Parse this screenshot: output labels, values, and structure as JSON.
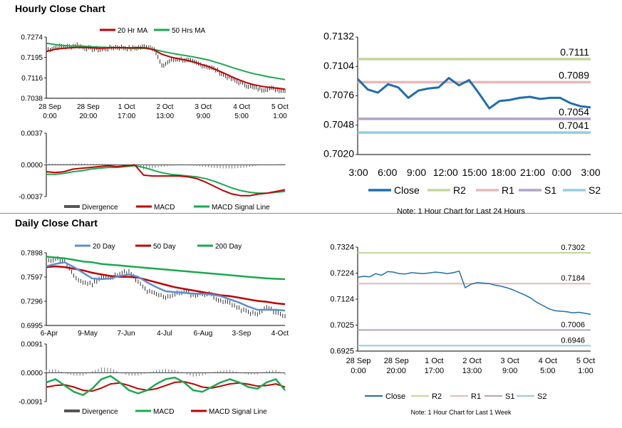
{
  "sections": {
    "hourly_title": "Hourly Close Chart",
    "daily_title": "Daily Close Chart"
  },
  "colors": {
    "close": "#1f6fb0",
    "ma_short": "#c00000",
    "ma_long": "#1aaa50",
    "ma_200": "#1aaa50",
    "ma_20_day": "#5b8fd0",
    "divergence": "#777777",
    "r2": "#c3d69b",
    "r1": "#e6b9b8",
    "s1": "#b3a2c7",
    "s2": "#93cddd"
  },
  "chart_data": [
    {
      "id": "hourly-price",
      "type": "line",
      "ylim": [
        0.7038,
        0.7274
      ],
      "y_ticks": [
        "0.7274",
        "0.7195",
        "0.7116",
        "0.7038"
      ],
      "x_ticks": [
        [
          "28 Sep",
          "0:00"
        ],
        [
          "28 Sep",
          "20:00"
        ],
        [
          "1 Oct",
          "17:00"
        ],
        [
          "2 Oct",
          "13:00"
        ],
        [
          "3 Oct",
          "9:00"
        ],
        [
          "4 Oct",
          "5:00"
        ],
        [
          "5 Oct",
          "1:00"
        ]
      ],
      "legend": [
        "20 Hr MA",
        "50 Hrs MA"
      ],
      "close": [
        0.7224,
        0.7232,
        0.7238,
        0.7236,
        0.7243,
        0.7232,
        0.7228,
        0.7226,
        0.723,
        0.7235,
        0.7233,
        0.723,
        0.7233,
        0.7238,
        0.7231,
        0.716,
        0.7182,
        0.719,
        0.7186,
        0.7178,
        0.7168,
        0.716,
        0.7148,
        0.7128,
        0.7113,
        0.71,
        0.7088,
        0.7078,
        0.7072,
        0.7076,
        0.7072,
        0.7066
      ],
      "ma_20": [
        0.7218,
        0.7226,
        0.723,
        0.7232,
        0.7234,
        0.7234,
        0.7232,
        0.7231,
        0.7232,
        0.7233,
        0.7233,
        0.7232,
        0.7233,
        0.7232,
        0.7224,
        0.7208,
        0.7198,
        0.7191,
        0.7186,
        0.7179,
        0.717,
        0.7161,
        0.7149,
        0.7136,
        0.7122,
        0.7109,
        0.7098,
        0.709,
        0.7084,
        0.708,
        0.7077,
        0.7073
      ],
      "ma_50": [
        0.725,
        0.7246,
        0.7242,
        0.724,
        0.7239,
        0.7238,
        0.7236,
        0.7235,
        0.7234,
        0.7233,
        0.7232,
        0.7231,
        0.7231,
        0.723,
        0.7226,
        0.7219,
        0.7213,
        0.7208,
        0.7203,
        0.7198,
        0.7192,
        0.7186,
        0.7177,
        0.7168,
        0.7158,
        0.7149,
        0.714,
        0.7132,
        0.7126,
        0.712,
        0.7115,
        0.711
      ]
    },
    {
      "id": "hourly-macd",
      "type": "line",
      "ylim": [
        -0.0037,
        0.0037
      ],
      "y_ticks": [
        "0.0037",
        "0.0000",
        "-0.0037"
      ],
      "legend": [
        "Divergence",
        "MACD",
        "MACD Signal Line"
      ],
      "macd": [
        -0.0008,
        -0.0009,
        -0.0008,
        -0.0005,
        -0.0004,
        -0.0003,
        -0.0002,
        -0.0001,
        -0.0002,
        -0.0001,
        0.0,
        -0.0012,
        -0.0013,
        -0.0013,
        -0.0013,
        -0.0013,
        -0.0014,
        -0.0016,
        -0.002,
        -0.0025,
        -0.003,
        -0.0034,
        -0.0036,
        -0.0036,
        -0.0034,
        -0.0033,
        -0.0031,
        -0.0029
      ],
      "signal": [
        -0.0011,
        -0.0011,
        -0.001,
        -0.0008,
        -0.0007,
        -0.0005,
        -0.0004,
        -0.0003,
        -0.0003,
        -0.0002,
        -0.0001,
        -0.0003,
        -0.0006,
        -0.0009,
        -0.0011,
        -0.0012,
        -0.0013,
        -0.0014,
        -0.0016,
        -0.0019,
        -0.0023,
        -0.0027,
        -0.003,
        -0.0032,
        -0.0033,
        -0.0033,
        -0.0032,
        -0.0031
      ]
    },
    {
      "id": "hourly-24h",
      "type": "line",
      "title": "",
      "ylim": [
        0.702,
        0.7132
      ],
      "y_ticks": [
        "0.7132",
        "0.7104",
        "0.7076",
        "0.7048",
        "0.7020"
      ],
      "x_ticks": [
        "3:00",
        "6:00",
        "9:00",
        "12:00",
        "15:00",
        "18:00",
        "21:00",
        "0:00",
        "3:00"
      ],
      "levels": [
        {
          "name": "R2",
          "value": 0.7111,
          "label": "0.7111"
        },
        {
          "name": "R1",
          "value": 0.7089,
          "label": "0.7089"
        },
        {
          "name": "S1",
          "value": 0.7054,
          "label": "0.7054"
        },
        {
          "name": "S2",
          "value": 0.7041,
          "label": "0.7041"
        }
      ],
      "close": [
        0.7092,
        0.7082,
        0.7079,
        0.7087,
        0.7084,
        0.7074,
        0.7081,
        0.7083,
        0.7084,
        0.7093,
        0.7086,
        0.7091,
        0.7078,
        0.7064,
        0.7071,
        0.7072,
        0.7074,
        0.7075,
        0.7073,
        0.7074,
        0.7074,
        0.7069,
        0.7066,
        0.7065
      ],
      "legend": [
        "Close",
        "R2",
        "R1",
        "S1",
        "S2"
      ],
      "note": "Note: 1 Hour Chart for Last 24 Hours"
    },
    {
      "id": "daily-price",
      "type": "line",
      "ylim": [
        0.6995,
        0.7898
      ],
      "y_ticks": [
        "0.7898",
        "0.7597",
        "0.7296",
        "0.6995"
      ],
      "x_ticks": [
        "6-Apr",
        "9-May",
        "7-Jun",
        "4-Jul",
        "6-Aug",
        "3-Sep",
        "4-Oct"
      ],
      "legend": [
        "20 Day",
        "50 Day",
        "200 Day"
      ],
      "close": [
        0.778,
        0.783,
        0.78,
        0.76,
        0.753,
        0.751,
        0.76,
        0.758,
        0.765,
        0.766,
        0.753,
        0.742,
        0.738,
        0.735,
        0.738,
        0.742,
        0.737,
        0.739,
        0.738,
        0.729,
        0.728,
        0.72,
        0.716,
        0.713,
        0.722,
        0.716,
        0.711
      ],
      "ma_20": [
        0.773,
        0.776,
        0.778,
        0.772,
        0.765,
        0.758,
        0.757,
        0.758,
        0.761,
        0.763,
        0.76,
        0.753,
        0.747,
        0.742,
        0.741,
        0.74,
        0.739,
        0.739,
        0.738,
        0.736,
        0.732,
        0.728,
        0.723,
        0.719,
        0.719,
        0.719,
        0.718
      ],
      "ma_50": [
        0.772,
        0.773,
        0.772,
        0.77,
        0.768,
        0.765,
        0.763,
        0.761,
        0.76,
        0.76,
        0.759,
        0.756,
        0.753,
        0.75,
        0.747,
        0.745,
        0.743,
        0.741,
        0.739,
        0.737,
        0.736,
        0.734,
        0.732,
        0.73,
        0.729,
        0.727,
        0.726
      ],
      "ma_200": [
        0.785,
        0.784,
        0.783,
        0.781,
        0.779,
        0.778,
        0.776,
        0.775,
        0.774,
        0.773,
        0.772,
        0.771,
        0.77,
        0.769,
        0.768,
        0.767,
        0.766,
        0.765,
        0.764,
        0.763,
        0.762,
        0.761,
        0.76,
        0.759,
        0.758,
        0.7575,
        0.757
      ]
    },
    {
      "id": "daily-macd",
      "type": "line",
      "ylim": [
        -0.0091,
        0.0091
      ],
      "y_ticks": [
        "0.0091",
        "0.0000",
        "-0.0091"
      ],
      "legend": [
        "Divergence",
        "MACD",
        "MACD Signal Line"
      ],
      "macd": [
        -0.003,
        -0.002,
        -0.004,
        -0.006,
        -0.007,
        -0.005,
        -0.002,
        -0.001,
        -0.003,
        -0.0055,
        -0.0065,
        -0.0055,
        -0.0035,
        -0.002,
        -0.0015,
        -0.003,
        -0.0055,
        -0.006,
        -0.0045,
        -0.003,
        -0.002,
        -0.003,
        -0.0045,
        -0.005,
        -0.003,
        -0.002,
        -0.0055
      ],
      "signal": [
        -0.0045,
        -0.004,
        -0.0038,
        -0.0045,
        -0.0055,
        -0.0058,
        -0.0048,
        -0.0035,
        -0.0032,
        -0.004,
        -0.005,
        -0.0055,
        -0.005,
        -0.004,
        -0.003,
        -0.0028,
        -0.0035,
        -0.0045,
        -0.0048,
        -0.0042,
        -0.0035,
        -0.0032,
        -0.0036,
        -0.0042,
        -0.004,
        -0.0035,
        -0.0045
      ]
    },
    {
      "id": "daily-week",
      "type": "line",
      "ylim": [
        0.6925,
        0.7324
      ],
      "y_ticks": [
        "0.7324",
        "0.7224",
        "0.7124",
        "0.7025",
        "0.6925"
      ],
      "x_ticks": [
        [
          "28 Sep",
          "0:00"
        ],
        [
          "28 Sep",
          "20:00"
        ],
        [
          "1 Oct",
          "17:00"
        ],
        [
          "2 Oct",
          "13:00"
        ],
        [
          "3 Oct",
          "9:00"
        ],
        [
          "4 Oct",
          "5:00"
        ],
        [
          "5 Oct",
          "1:00"
        ]
      ],
      "levels": [
        {
          "name": "R2",
          "value": 0.7302,
          "label": "0.7302"
        },
        {
          "name": "R1",
          "value": 0.7184,
          "label": "0.7184"
        },
        {
          "name": "S1",
          "value": 0.7006,
          "label": "0.7006"
        },
        {
          "name": "S2",
          "value": 0.6946,
          "label": "0.6946"
        }
      ],
      "close": [
        0.7208,
        0.7212,
        0.721,
        0.7222,
        0.7216,
        0.723,
        0.7228,
        0.7222,
        0.7221,
        0.7226,
        0.7224,
        0.7222,
        0.7225,
        0.7228,
        0.7226,
        0.7222,
        0.7226,
        0.7232,
        0.7168,
        0.7182,
        0.7188,
        0.7186,
        0.7184,
        0.7178,
        0.7174,
        0.7168,
        0.716,
        0.715,
        0.714,
        0.7128,
        0.7112,
        0.71,
        0.7088,
        0.708,
        0.7078,
        0.7076,
        0.7072,
        0.7074,
        0.707,
        0.7066
      ],
      "legend": [
        "Close",
        "R2",
        "R1",
        "S1",
        "S2"
      ],
      "note": "Note: 1 Hour Chart for Last 1 Week"
    }
  ]
}
